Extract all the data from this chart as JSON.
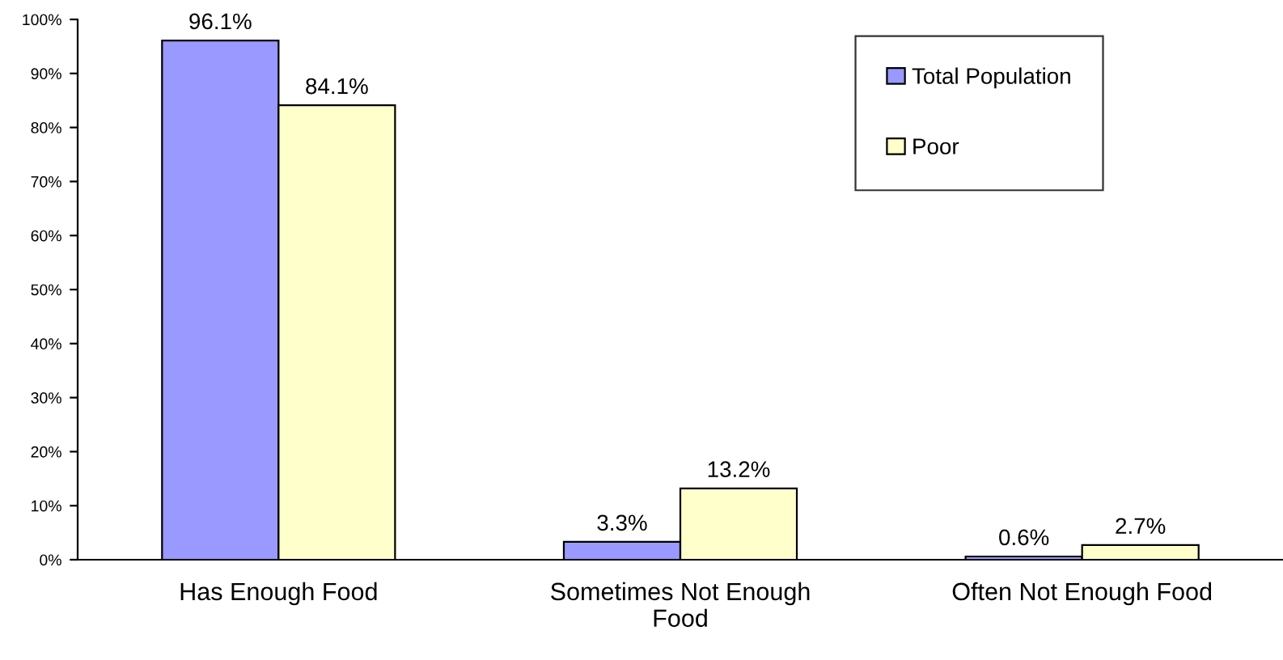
{
  "chart_data": {
    "type": "bar",
    "categories": [
      "Has Enough Food",
      "Sometimes Not Enough\nFood",
      "Often Not Enough Food"
    ],
    "series": [
      {
        "name": "Total Population",
        "color": "#9999ff",
        "values": [
          96.1,
          3.3,
          0.6
        ],
        "value_labels": [
          "96.1%",
          "3.3%",
          "0.6%"
        ]
      },
      {
        "name": "Poor",
        "color": "#ffffcc",
        "values": [
          84.1,
          13.2,
          2.7
        ],
        "value_labels": [
          "84.1%",
          "13.2%",
          "2.7%"
        ]
      }
    ],
    "ylim": [
      0,
      100
    ],
    "yticks": [
      {
        "value": 0,
        "label": "0%"
      },
      {
        "value": 10,
        "label": "10%"
      },
      {
        "value": 20,
        "label": "20%"
      },
      {
        "value": 30,
        "label": "30%"
      },
      {
        "value": 40,
        "label": "40%"
      },
      {
        "value": 50,
        "label": "50%"
      },
      {
        "value": 60,
        "label": "60%"
      },
      {
        "value": 70,
        "label": "70%"
      },
      {
        "value": 80,
        "label": "80%"
      },
      {
        "value": 90,
        "label": "90%"
      },
      {
        "value": 100,
        "label": "100%"
      }
    ],
    "grid": false,
    "legend": "top right"
  }
}
